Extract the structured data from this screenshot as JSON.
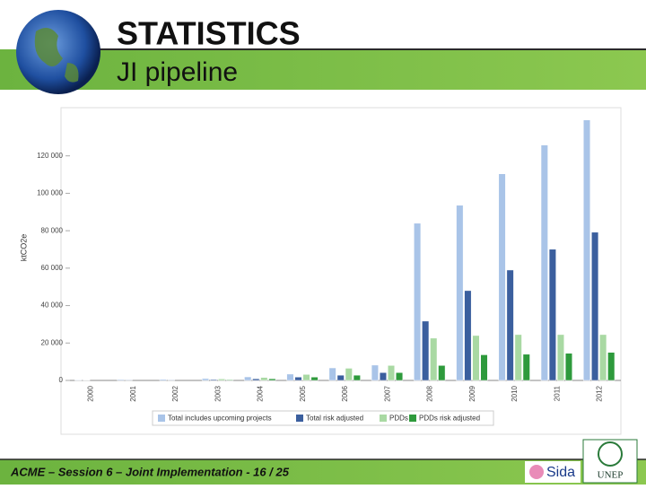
{
  "header": {
    "title": "STATISTICS",
    "subtitle": "JI pipeline"
  },
  "chart_data": {
    "type": "bar",
    "y_label": "ktCO2e",
    "categories": [
      "2000",
      "2001",
      "2002",
      "2003",
      "2004",
      "2005",
      "2006",
      "2007",
      "2008",
      "2009",
      "2010",
      "2011",
      "2012"
    ],
    "series": [
      {
        "name": "Total includes upcoming projects",
        "color": "#a9c4e8",
        "values": [
          300,
          500,
          600,
          1000,
          1900,
          3400,
          6700,
          8200,
          84000,
          93600,
          110400,
          125800,
          139200
        ]
      },
      {
        "name": "Total risk adjusted",
        "color": "#3b5f9e",
        "values": [
          100,
          300,
          300,
          500,
          900,
          1800,
          2800,
          4200,
          31700,
          48000,
          59000,
          70100,
          79200
        ]
      },
      {
        "name": "PDDs",
        "color": "#a9d9a3",
        "values": [
          0,
          0,
          0,
          800,
          1600,
          3200,
          6500,
          8000,
          22600,
          24000,
          24500,
          24500,
          24500
        ]
      },
      {
        "name": "PDDs risk adjusted",
        "color": "#2e9a3c",
        "values": [
          0,
          0,
          0,
          400,
          900,
          1800,
          2800,
          4200,
          8000,
          13700,
          14000,
          14500,
          15000
        ]
      }
    ],
    "ylim": [
      0,
      140000
    ],
    "yticks": [
      0,
      {
        "value": 20000,
        "label": "20 000"
      },
      {
        "value": 40000,
        "label": "40 000"
      },
      {
        "value": 60000,
        "label": "60 000"
      },
      {
        "value": 80000,
        "label": "80 000"
      },
      {
        "value": 100000,
        "label": "100 000"
      },
      {
        "value": 120000,
        "label": "120 000"
      }
    ],
    "legend": "bottom"
  },
  "footer": {
    "text": "ACME – Session 6 – Joint Implementation - 16 / 25",
    "logo1": "Sida",
    "logo2": "UNEP"
  }
}
